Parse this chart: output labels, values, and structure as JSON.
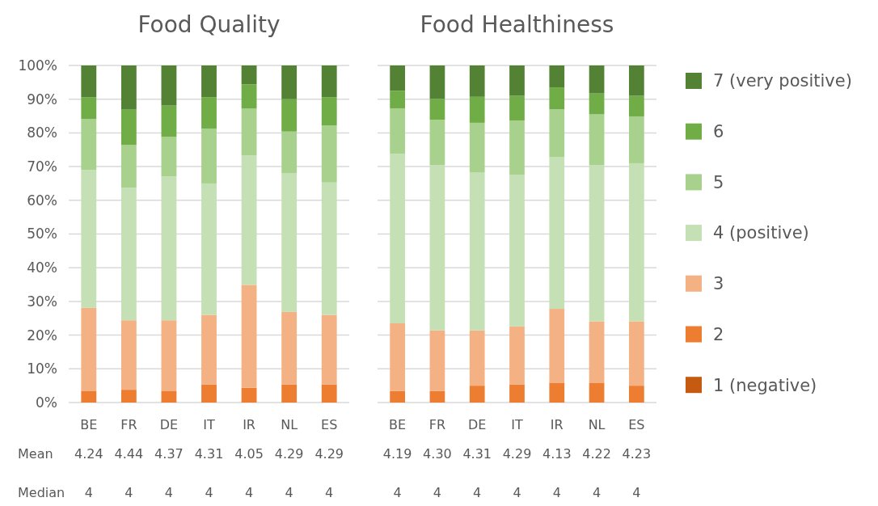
{
  "chart_data": [
    {
      "type": "bar",
      "title": "Food Quality",
      "stacked": true,
      "categories": [
        "BE",
        "FR",
        "DE",
        "IT",
        "IR",
        "NL",
        "ES"
      ],
      "ylim": [
        0,
        100
      ],
      "yticks": [
        {
          "value": 0,
          "label": "0%"
        },
        {
          "value": 10,
          "label": "10%"
        },
        {
          "value": 20,
          "label": "20%"
        },
        {
          "value": 30,
          "label": "30%"
        },
        {
          "value": 40,
          "label": "40%"
        },
        {
          "value": 50,
          "label": "50%"
        },
        {
          "value": 60,
          "label": "60%"
        },
        {
          "value": 70,
          "label": "70%"
        },
        {
          "value": 80,
          "label": "80%"
        },
        {
          "value": 90,
          "label": "90%"
        },
        {
          "value": 100,
          "label": "100%"
        }
      ],
      "grid": "y",
      "legend": false,
      "series": [
        {
          "color": "#c55a11",
          "values": [
            0,
            0,
            0,
            0,
            0,
            0,
            0
          ]
        },
        {
          "color": "#ed7d31",
          "values": [
            3.5,
            3.8,
            3.5,
            5.3,
            4.4,
            5.3,
            5.3
          ]
        },
        {
          "color": "#f4b183",
          "values": [
            24.6,
            20.6,
            20.9,
            20.7,
            30.5,
            21.6,
            20.7
          ]
        },
        {
          "color": "#c5e0b4",
          "values": [
            40.9,
            39.3,
            42.7,
            39.0,
            38.4,
            41.2,
            39.3
          ]
        },
        {
          "color": "#a9d18e",
          "values": [
            15.1,
            12.7,
            11.7,
            16.3,
            13.9,
            12.3,
            16.9
          ]
        },
        {
          "color": "#70ad47",
          "values": [
            6.5,
            10.5,
            9.3,
            9.3,
            7.2,
            9.6,
            8.4
          ]
        },
        {
          "color": "#548235",
          "values": [
            9.4,
            13.1,
            11.9,
            9.4,
            5.6,
            10.0,
            9.4
          ]
        }
      ],
      "annotations": [
        "Mean",
        "4.24",
        "4.44",
        "4.37",
        "4.31",
        "4.05",
        "4.29",
        "4.29",
        "Median",
        "4",
        "4",
        "4",
        "4",
        "4",
        "4",
        "4"
      ]
    },
    {
      "type": "bar",
      "title": "Food Healthiness",
      "stacked": true,
      "categories": [
        "BE",
        "FR",
        "DE",
        "IT",
        "IR",
        "NL",
        "ES"
      ],
      "ylim": [
        0,
        100
      ],
      "yticks": [
        {
          "value": 0,
          "label": null
        },
        {
          "value": 10,
          "label": null
        },
        {
          "value": 20,
          "label": null
        },
        {
          "value": 30,
          "label": null
        },
        {
          "value": 40,
          "label": null
        },
        {
          "value": 50,
          "label": null
        },
        {
          "value": 60,
          "label": null
        },
        {
          "value": 70,
          "label": null
        },
        {
          "value": 80,
          "label": null
        },
        {
          "value": 90,
          "label": null
        },
        {
          "value": 100,
          "label": null
        }
      ],
      "tick_labels": "x",
      "grid": "y",
      "legend": "right",
      "series": [
        {
          "name": "1 (negative)",
          "color": "#c55a11",
          "values": [
            0,
            0,
            0,
            0,
            0,
            0,
            0
          ]
        },
        {
          "name": "2",
          "color": "#ed7d31",
          "values": [
            3.4,
            3.4,
            5.0,
            5.3,
            5.9,
            5.9,
            5.0
          ]
        },
        {
          "name": "3",
          "color": "#f4b183",
          "values": [
            20.1,
            18.0,
            16.4,
            17.3,
            21.9,
            18.2,
            19.1
          ]
        },
        {
          "name": "4 (positive)",
          "color": "#c5e0b4",
          "values": [
            50.3,
            49.0,
            46.8,
            45.0,
            45.0,
            46.3,
            46.9
          ]
        },
        {
          "name": "5",
          "color": "#a9d18e",
          "values": [
            13.5,
            13.5,
            14.8,
            16.1,
            14.2,
            15.1,
            13.9
          ]
        },
        {
          "name": "6",
          "color": "#70ad47",
          "values": [
            5.2,
            6.2,
            7.7,
            7.3,
            6.5,
            6.2,
            6.1
          ]
        },
        {
          "name": "7 (very positive)",
          "color": "#548235",
          "values": [
            7.5,
            9.9,
            9.3,
            9.0,
            6.5,
            8.3,
            9.0
          ]
        }
      ],
      "annotations": [
        "4.19",
        "4.30",
        "4.31",
        "4.29",
        "4.13",
        "4.22",
        "4.23",
        "4",
        "4",
        "4",
        "4",
        "4",
        "4",
        "4"
      ]
    }
  ]
}
